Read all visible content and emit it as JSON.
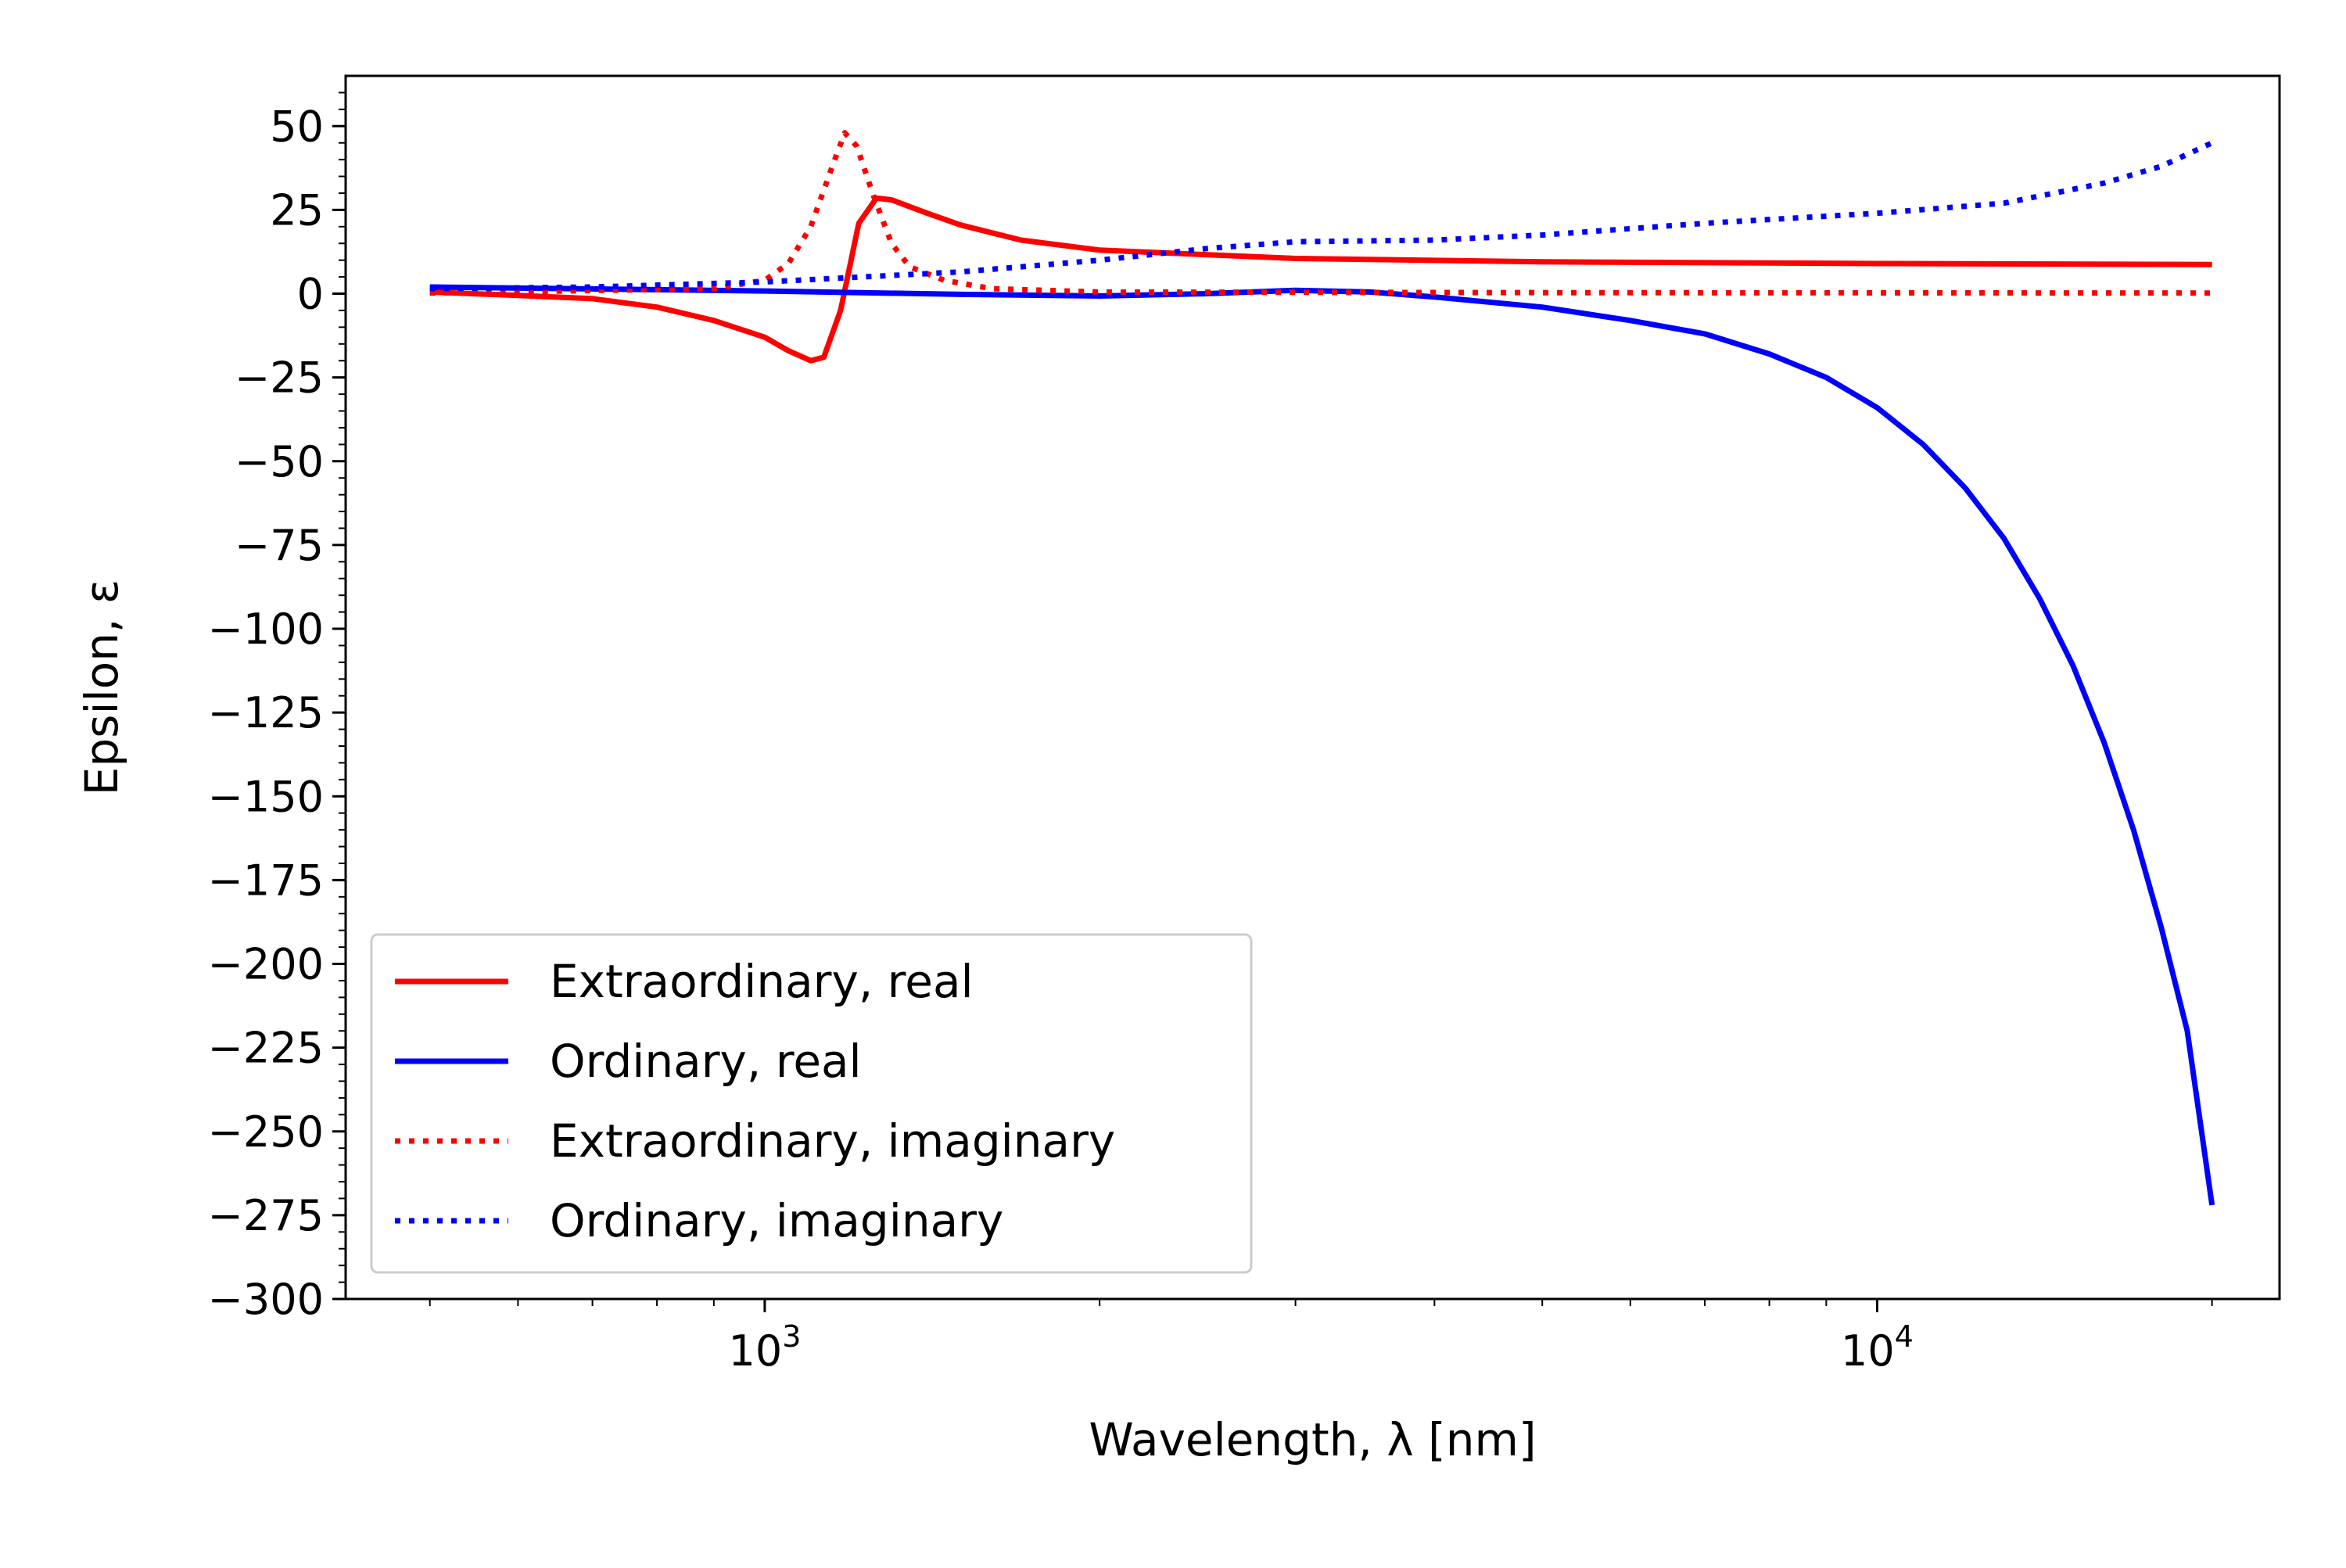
{
  "chart_data": {
    "type": "line",
    "xlabel": "Wavelength, λ [nm]",
    "ylabel": "Epsilon, ε",
    "xscale": "log",
    "xlim": [
      420,
      23000
    ],
    "ylim": [
      -300,
      65
    ],
    "grid": false,
    "legend_position": "lower-left",
    "x_major_ticks": [
      1000,
      10000
    ],
    "x_major_labels": [
      {
        "base": "10",
        "exp": "3"
      },
      {
        "base": "10",
        "exp": "4"
      }
    ],
    "y_ticks": [
      50,
      25,
      0,
      -25,
      -50,
      -75,
      -100,
      -125,
      -150,
      -175,
      -200,
      -225,
      -250,
      -275,
      -300
    ],
    "y_tick_labels": [
      "50",
      "25",
      "0",
      "−25",
      "−50",
      "−75",
      "−100",
      "−125",
      "−150",
      "−175",
      "−200",
      "−225",
      "−250",
      "−275",
      "−300"
    ],
    "series": [
      {
        "name": "Extraordinary, real",
        "color": "#ff0000",
        "style": "solid",
        "points": [
          [
            500,
            0.5
          ],
          [
            600,
            -0.5
          ],
          [
            700,
            -1.5
          ],
          [
            800,
            -4
          ],
          [
            900,
            -8
          ],
          [
            1000,
            -13
          ],
          [
            1050,
            -17
          ],
          [
            1100,
            -20
          ],
          [
            1130,
            -19
          ],
          [
            1170,
            -5
          ],
          [
            1215,
            21
          ],
          [
            1260,
            28.5
          ],
          [
            1300,
            28
          ],
          [
            1400,
            24
          ],
          [
            1500,
            20.5
          ],
          [
            1700,
            16
          ],
          [
            2000,
            13
          ],
          [
            3000,
            10.5
          ],
          [
            5000,
            9.5
          ],
          [
            10000,
            9
          ],
          [
            20000,
            8.7
          ]
        ]
      },
      {
        "name": "Ordinary, real",
        "color": "#0000ff",
        "style": "solid",
        "points": [
          [
            500,
            2
          ],
          [
            1000,
            0.8
          ],
          [
            1500,
            -0.2
          ],
          [
            2000,
            -0.7
          ],
          [
            2500,
            0
          ],
          [
            3000,
            1
          ],
          [
            3500,
            0.5
          ],
          [
            4000,
            -1
          ],
          [
            5000,
            -4
          ],
          [
            6000,
            -8
          ],
          [
            7000,
            -12
          ],
          [
            8000,
            -18
          ],
          [
            9000,
            -25
          ],
          [
            10000,
            -34
          ],
          [
            11000,
            -45
          ],
          [
            12000,
            -58
          ],
          [
            13000,
            -73
          ],
          [
            14000,
            -91
          ],
          [
            15000,
            -111
          ],
          [
            16000,
            -134
          ],
          [
            17000,
            -160
          ],
          [
            18000,
            -189
          ],
          [
            19000,
            -220
          ],
          [
            20000,
            -272
          ]
        ]
      },
      {
        "name": "Extraordinary, imaginary",
        "color": "#ff0000",
        "style": "dotted",
        "points": [
          [
            500,
            0.2
          ],
          [
            900,
            1.5
          ],
          [
            1000,
            4
          ],
          [
            1050,
            9
          ],
          [
            1100,
            20
          ],
          [
            1150,
            38
          ],
          [
            1180,
            48
          ],
          [
            1210,
            44
          ],
          [
            1250,
            30
          ],
          [
            1300,
            15
          ],
          [
            1350,
            8
          ],
          [
            1450,
            4
          ],
          [
            1600,
            1.5
          ],
          [
            2000,
            0.5
          ],
          [
            5000,
            0.3
          ],
          [
            20000,
            0.2
          ]
        ]
      },
      {
        "name": "Ordinary, imaginary",
        "color": "#0000ff",
        "style": "dotted",
        "points": [
          [
            500,
            1.5
          ],
          [
            700,
            2
          ],
          [
            1000,
            3.5
          ],
          [
            1500,
            6.5
          ],
          [
            2000,
            10
          ],
          [
            2500,
            13.5
          ],
          [
            3000,
            15.5
          ],
          [
            4000,
            16
          ],
          [
            5000,
            17.5
          ],
          [
            7000,
            21
          ],
          [
            10000,
            24
          ],
          [
            13000,
            27
          ],
          [
            16000,
            33
          ],
          [
            18000,
            38
          ],
          [
            20000,
            45
          ]
        ]
      }
    ]
  }
}
